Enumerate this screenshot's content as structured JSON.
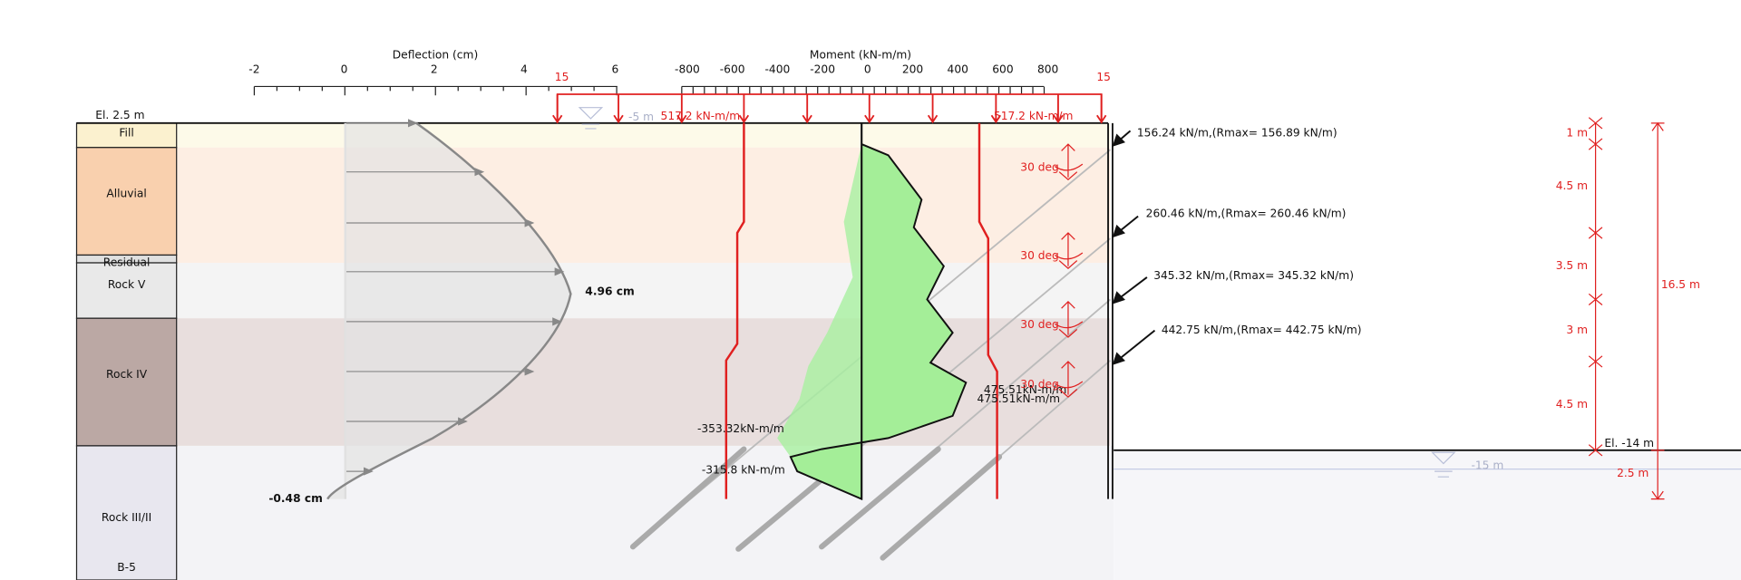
{
  "deflection_axis": {
    "title": "Deflection (cm)",
    "ticks": [
      "-2",
      "0",
      "2",
      "4",
      "6"
    ]
  },
  "moment_axis": {
    "title": "Moment (kN-m/m)",
    "ticks": [
      "-800",
      "-600",
      "-400",
      "-200",
      "0",
      "200",
      "400",
      "600",
      "800"
    ]
  },
  "moment_limit_labels": [
    "15",
    "15"
  ],
  "wall_top_label": "El. 2.5 m",
  "layers": [
    "Fill",
    "Alluvial",
    "Residual",
    "Rock V",
    "Rock IV",
    "Rock III/II"
  ],
  "borehole": "B-5",
  "deflection": {
    "max_label": "4.96 cm",
    "toe_label": "-0.48 cm"
  },
  "moment": {
    "capacity_labels": [
      "517.2 kN-m/m",
      "517.2 kN-m/m"
    ],
    "peak_labels": [
      "475.51kN-m/m",
      "475.51kN-m/m",
      "-353.32kN-m/m",
      "-315.8 kN-m/m"
    ]
  },
  "water_levels": [
    "-5 m",
    "-15 m"
  ],
  "anchors": [
    {
      "angle": "30 deg",
      "force": "156.24 kN/m,(Rmax= 156.89 kN/m)"
    },
    {
      "angle": "30 deg",
      "force": "260.46 kN/m,(Rmax= 260.46 kN/m)"
    },
    {
      "angle": "30 deg",
      "force": "345.32 kN/m,(Rmax= 345.32 kN/m)"
    },
    {
      "angle": "30 deg",
      "force": "442.75 kN/m,(Rmax= 442.75 kN/m)"
    }
  ],
  "dimensions": {
    "segments": [
      "1 m",
      "4.5 m",
      "3.5 m",
      "3 m",
      "4.5 m"
    ],
    "total": "16.5 m",
    "embedment": "2.5 m",
    "excavation_label": "El. -14 m"
  }
}
